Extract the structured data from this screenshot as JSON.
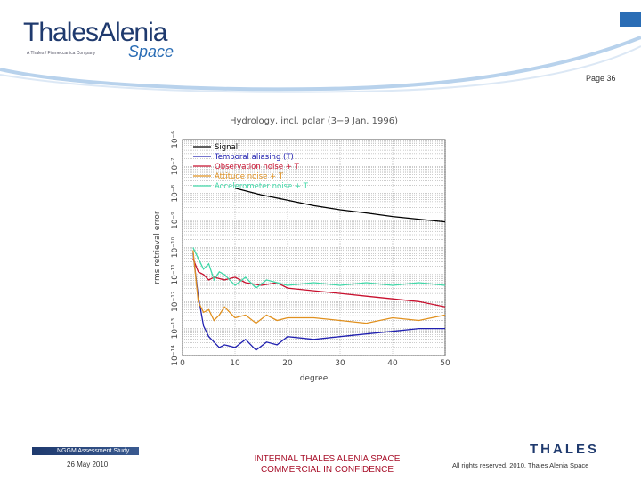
{
  "header": {
    "logo_main": "ThalesAlenia",
    "logo_sub": "A Thales / Finmeccanica Company",
    "logo_space": "Space",
    "page_label": "Page 36"
  },
  "footer": {
    "study": "NGGM Assessment Study",
    "date": "26 May 2010",
    "classification_line1": "INTERNAL THALES ALENIA SPACE",
    "classification_line2": "COMMERCIAL IN CONFIDENCE",
    "thales_logo": "THALES",
    "rights": "All rights reserved, 2010, Thales Alenia Space"
  },
  "colors": {
    "brand_dark": "#1f3a6e",
    "brand_light": "#2a6db5",
    "classification": "#a8102a"
  },
  "chart_data": {
    "type": "line",
    "title": "Hydrology, incl. polar (3−9 Jan. 1996)",
    "xlabel": "degree",
    "ylabel": "rms retrieval error",
    "xlim": [
      0,
      50
    ],
    "ylim_exponent": [
      -14,
      -6
    ],
    "y_scale": "log",
    "x_ticks": [
      "0",
      "10",
      "20",
      "30",
      "40",
      "50"
    ],
    "y_ticks": [
      "10⁻¹⁴",
      "10⁻¹³",
      "10⁻¹²",
      "10⁻¹¹",
      "10⁻¹⁰",
      "10⁻⁹",
      "10⁻⁸",
      "10⁻⁷",
      "10⁻⁶"
    ],
    "grid": true,
    "legend_position": "top-left",
    "series": [
      {
        "name": "Signal",
        "color": "#000000",
        "x": [
          10,
          15,
          20,
          25,
          30,
          35,
          40,
          45,
          50
        ],
        "log10_y": [
          -7.8,
          -8.05,
          -8.25,
          -8.45,
          -8.6,
          -8.72,
          -8.85,
          -8.95,
          -9.05
        ]
      },
      {
        "name": "Temporal aliasing (T)",
        "color": "#2020b0",
        "x": [
          2,
          3,
          4,
          5,
          6,
          7,
          8,
          10,
          12,
          14,
          16,
          18,
          20,
          25,
          30,
          35,
          40,
          45,
          50
        ],
        "log10_y": [
          -10.2,
          -11.8,
          -12.9,
          -13.3,
          -13.5,
          -13.7,
          -13.6,
          -13.7,
          -13.4,
          -13.8,
          -13.5,
          -13.6,
          -13.3,
          -13.4,
          -13.3,
          -13.2,
          -13.1,
          -13.0,
          -13.0
        ]
      },
      {
        "name": "Observation noise + T",
        "color": "#c8102e",
        "x": [
          2,
          3,
          4,
          5,
          6,
          8,
          10,
          12,
          15,
          18,
          20,
          25,
          30,
          35,
          40,
          45,
          50
        ],
        "log10_y": [
          -10.4,
          -10.9,
          -11.0,
          -11.2,
          -11.1,
          -11.2,
          -11.1,
          -11.3,
          -11.4,
          -11.3,
          -11.5,
          -11.6,
          -11.7,
          -11.8,
          -11.9,
          -12.0,
          -12.2
        ]
      },
      {
        "name": "Attitude noise + T",
        "color": "#e0901e",
        "x": [
          2,
          3,
          4,
          5,
          6,
          7,
          8,
          10,
          12,
          14,
          16,
          18,
          20,
          25,
          30,
          35,
          40,
          45,
          50
        ],
        "log10_y": [
          -10.1,
          -12.0,
          -12.4,
          -12.3,
          -12.7,
          -12.5,
          -12.2,
          -12.6,
          -12.5,
          -12.8,
          -12.5,
          -12.7,
          -12.6,
          -12.6,
          -12.7,
          -12.8,
          -12.6,
          -12.7,
          -12.5
        ]
      },
      {
        "name": "Accelerometer noise + T",
        "color": "#40d8a8",
        "x": [
          2,
          3,
          4,
          5,
          6,
          7,
          8,
          10,
          12,
          14,
          16,
          18,
          20,
          25,
          30,
          35,
          40,
          45,
          50
        ],
        "log10_y": [
          -10.0,
          -10.4,
          -10.8,
          -10.6,
          -11.2,
          -10.9,
          -11.0,
          -11.4,
          -11.1,
          -11.5,
          -11.2,
          -11.3,
          -11.4,
          -11.3,
          -11.4,
          -11.3,
          -11.4,
          -11.3,
          -11.4
        ]
      }
    ]
  }
}
